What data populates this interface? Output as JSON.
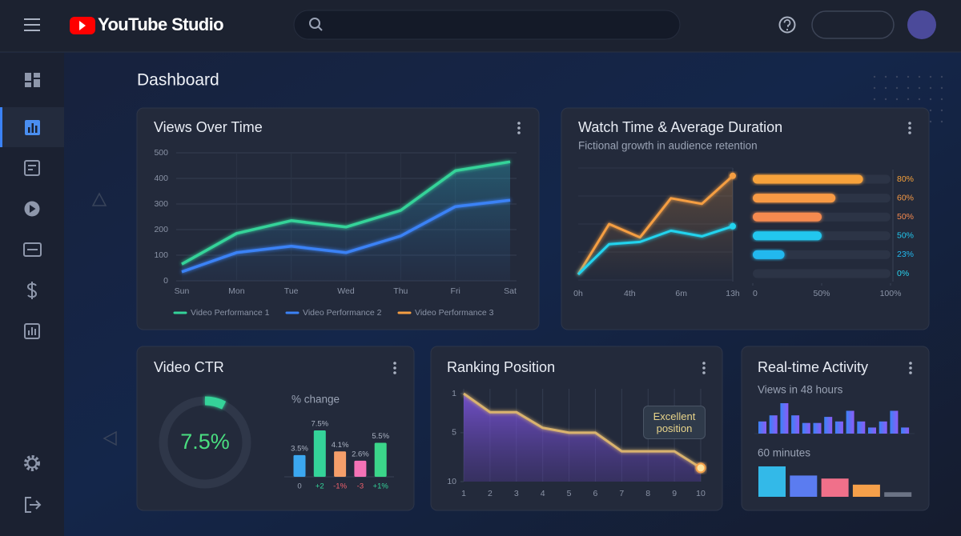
{
  "header": {
    "app_name": "YouTube Studio"
  },
  "page_title": "Dashboard",
  "views_over_time": {
    "type": "line",
    "title": "Views Over Time",
    "categories": [
      "Sun",
      "Mon",
      "Tue",
      "Wed",
      "Thu",
      "Fri",
      "Sat"
    ],
    "ylim": [
      0,
      500
    ],
    "yticks": [
      0,
      100,
      200,
      300,
      400,
      500
    ],
    "grid": true,
    "series": [
      {
        "name": "Video Performance 1",
        "color": "#34d399",
        "values": [
          65,
          185,
          235,
          210,
          275,
          430,
          465
        ]
      },
      {
        "name": "Video Performance 2",
        "color": "#3b82f6",
        "values": [
          35,
          110,
          135,
          110,
          175,
          290,
          315
        ]
      },
      {
        "name": "Video Performance 3",
        "color": "#f59e42",
        "values": [
          null,
          null,
          null,
          null,
          null,
          null,
          null
        ]
      }
    ]
  },
  "watch_time": {
    "type": "line",
    "title": "Watch Time & Average Duration",
    "subtitle": "Fictional growth in audience retention",
    "x_labels": [
      "0h",
      "4th",
      "6m",
      "13h"
    ],
    "ylim": [
      0,
      100
    ],
    "series": [
      {
        "color": "#f59e42",
        "values": [
          5,
          50,
          38,
          73,
          68,
          93
        ]
      },
      {
        "color": "#22d3ee",
        "values": [
          5,
          32,
          34,
          44,
          39,
          48
        ]
      }
    ],
    "bars": {
      "type": "bar",
      "orientation": "horizontal",
      "values": [
        80,
        60,
        50,
        50,
        23,
        0
      ],
      "value_labels": [
        "80%",
        "60%",
        "50%",
        "50%",
        "23%",
        "0%"
      ],
      "colors": [
        "#f7a23b",
        "#f79a45",
        "#f58a4f",
        "#22c7ee",
        "#22b8ee",
        "#2ad4f0"
      ],
      "xlim": [
        0,
        100
      ],
      "xticks": [
        0,
        {
          "value": 50,
          "label": "50%"
        },
        {
          "value": 100,
          "label": "100%"
        }
      ]
    }
  },
  "video_ctr": {
    "title": "Video CTR",
    "value": 7.5,
    "value_label": "7.5%",
    "change": {
      "type": "bar",
      "title": "% change",
      "categories": [
        "0",
        "+2",
        "-1%",
        "-3",
        "+1%"
      ],
      "values": [
        3.5,
        7.5,
        4.1,
        2.6,
        5.5
      ],
      "value_labels": [
        "3.5%",
        "7.5%",
        "4.1%",
        "2.6%",
        "5.5%"
      ],
      "colors": [
        "#3ba7f0",
        "#34d399",
        "#f59e6a",
        "#f472b6",
        "#3bd68a"
      ],
      "category_colors": [
        "#9aa3b5",
        "#34d399",
        "#f0616d",
        "#f0616d",
        "#34d399"
      ]
    }
  },
  "ranking_position": {
    "type": "line",
    "title": "Ranking Position",
    "x": [
      1,
      2,
      3,
      4,
      5,
      6,
      7,
      8,
      9,
      10
    ],
    "values": [
      1,
      2.9,
      2.9,
      4.5,
      5,
      5,
      6.9,
      6.9,
      6.9,
      8.6
    ],
    "xlim": [
      1,
      10
    ],
    "xticks": [
      1,
      2,
      3,
      4,
      5,
      6,
      7,
      8,
      9,
      10
    ],
    "ylim": [
      1,
      10
    ],
    "y_inverted": true,
    "yticks": [
      1,
      5,
      10
    ],
    "color": "#d9b36e",
    "annotation": "Excellent position"
  },
  "realtime_activity": {
    "title": "Real-time Activity",
    "views_48h": {
      "label": "Views in 48 hours",
      "values": [
        40,
        60,
        100,
        60,
        35,
        35,
        55,
        40,
        75,
        40,
        20,
        40,
        75,
        20
      ]
    },
    "minutes_60": {
      "label": "60 minutes",
      "values": [
        100,
        70,
        60,
        40,
        15
      ],
      "colors": [
        "#33b9e8",
        "#5b7cf0",
        "#f0708a",
        "#f5a04a",
        "#6b7385"
      ]
    }
  }
}
